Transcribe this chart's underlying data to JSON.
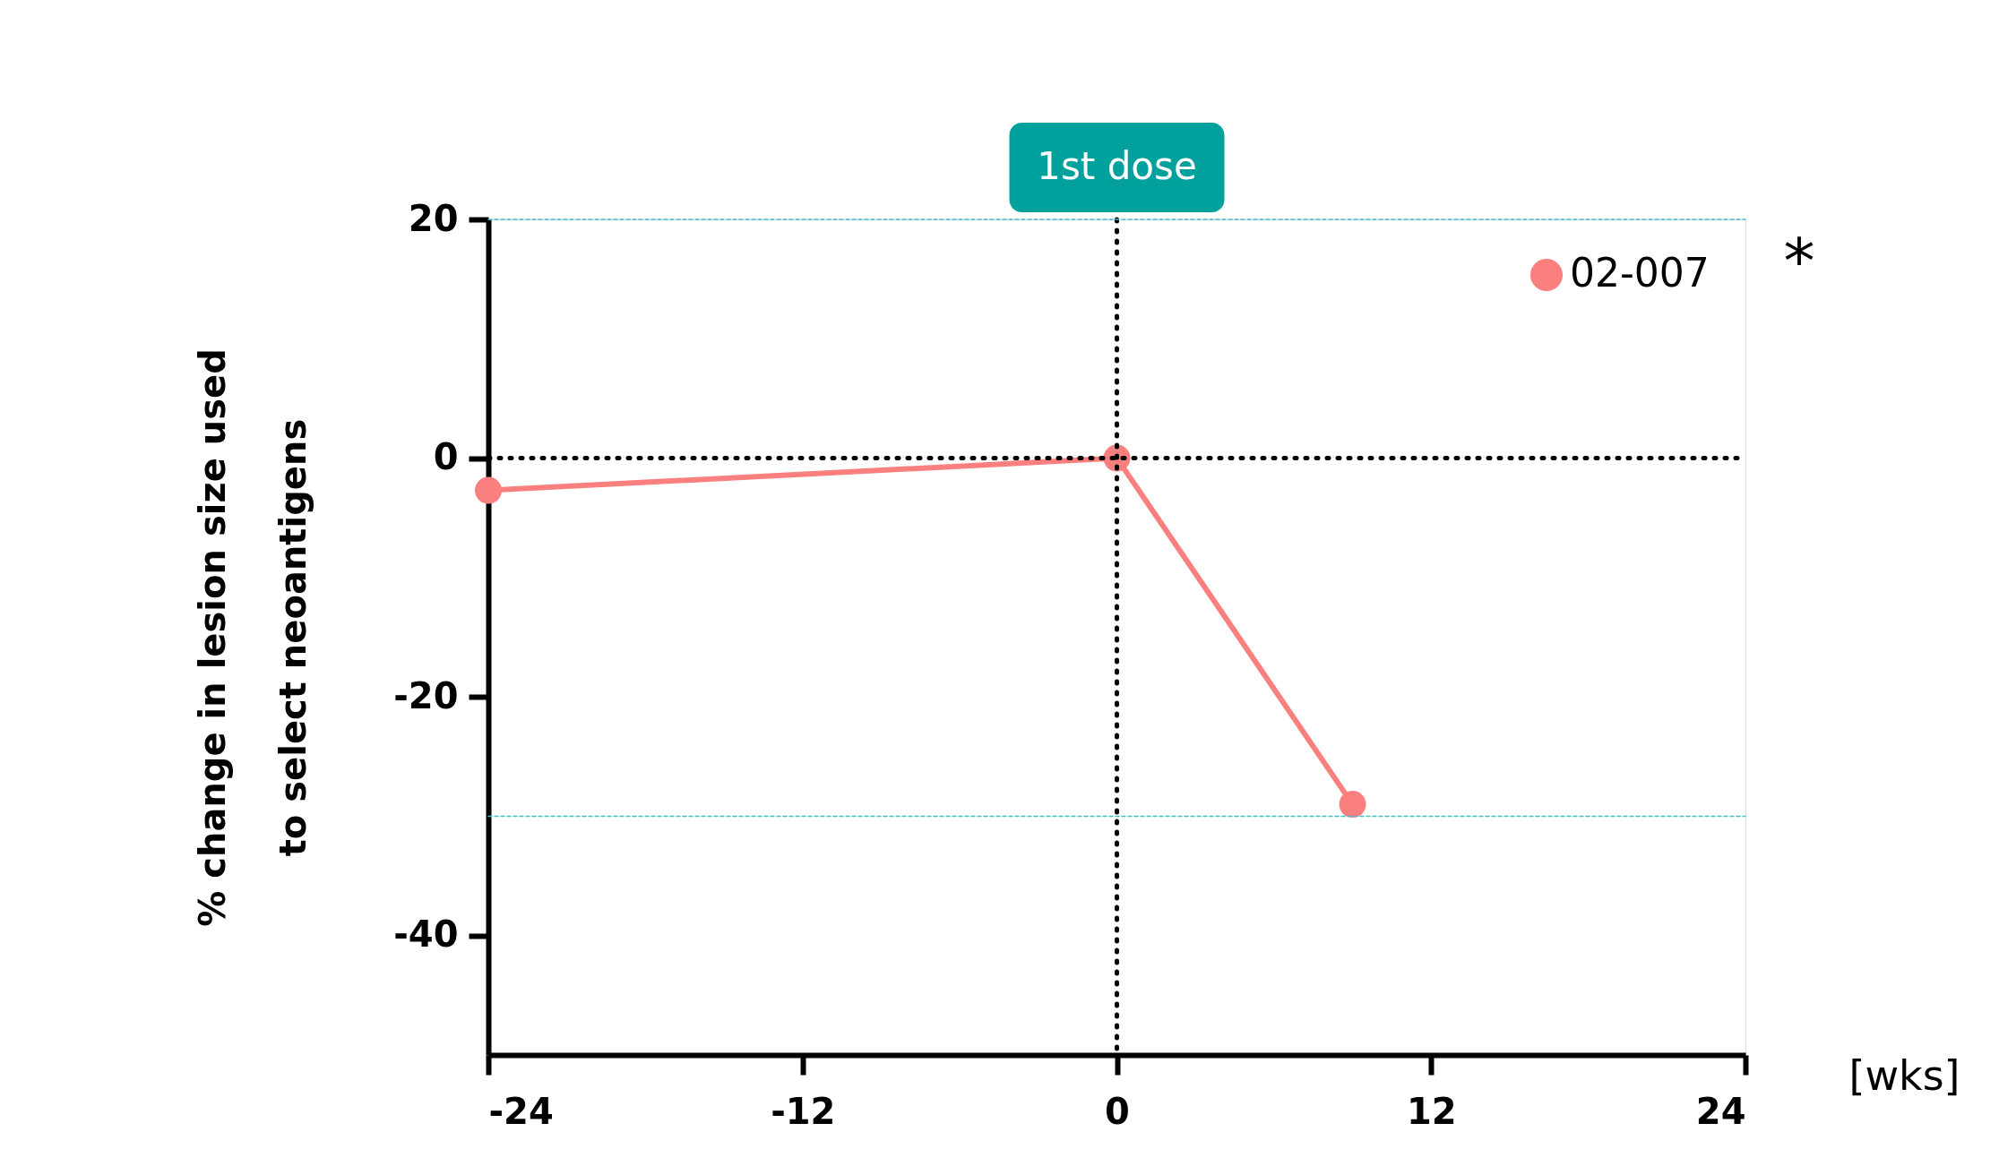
{
  "chart_data": {
    "type": "line",
    "xlabel": "[wks]",
    "ylabel": "% change in lesion size used\nto select neoantigens",
    "x": [
      -24,
      0,
      9
    ],
    "series": [
      {
        "name": "02-007",
        "color": "#fa8080",
        "values": [
          -2.7,
          0,
          -29
        ]
      }
    ],
    "xlim": [
      -24,
      24
    ],
    "xticks": [
      -24,
      -12,
      0,
      12,
      24
    ],
    "ylim": [
      -50,
      20
    ],
    "yticks": [
      20,
      0,
      -20,
      -40
    ],
    "ref_lines": [
      {
        "axis": "x",
        "value": 0,
        "label": "1st dose",
        "color": "#000000",
        "line_style": "dotted"
      },
      {
        "axis": "y",
        "value": 0,
        "color": "#000000",
        "line_style": "dotted"
      },
      {
        "axis": "y",
        "value": 20,
        "color": "#45c0c8",
        "line_style": "dashed"
      },
      {
        "axis": "y",
        "value": -30,
        "color": "#45c0c8",
        "line_style": "dashed"
      }
    ],
    "annotations": [
      "*"
    ],
    "grid": false,
    "legend": "top right",
    "marker": "circle",
    "line_style": "solid"
  }
}
